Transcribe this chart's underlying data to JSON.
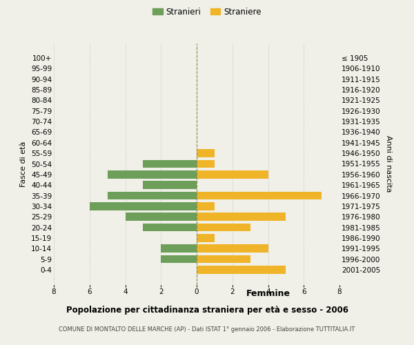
{
  "age_groups": [
    "100+",
    "95-99",
    "90-94",
    "85-89",
    "80-84",
    "75-79",
    "70-74",
    "65-69",
    "60-64",
    "55-59",
    "50-54",
    "45-49",
    "40-44",
    "35-39",
    "30-34",
    "25-29",
    "20-24",
    "15-19",
    "10-14",
    "5-9",
    "0-4"
  ],
  "birth_years": [
    "≤ 1905",
    "1906-1910",
    "1911-1915",
    "1916-1920",
    "1921-1925",
    "1926-1930",
    "1931-1935",
    "1936-1940",
    "1941-1945",
    "1946-1950",
    "1951-1955",
    "1956-1960",
    "1961-1965",
    "1966-1970",
    "1971-1975",
    "1976-1980",
    "1981-1985",
    "1986-1990",
    "1991-1995",
    "1996-2000",
    "2001-2005"
  ],
  "males": [
    0,
    0,
    0,
    0,
    0,
    0,
    0,
    0,
    0,
    0,
    3,
    5,
    3,
    5,
    6,
    4,
    3,
    0,
    2,
    2,
    0
  ],
  "females": [
    0,
    0,
    0,
    0,
    0,
    0,
    0,
    0,
    0,
    1,
    1,
    4,
    0,
    7,
    1,
    5,
    3,
    1,
    4,
    3,
    5
  ],
  "male_color": "#6d9e5a",
  "female_color": "#f0b429",
  "background_color": "#f0f0e8",
  "grid_color": "#cccccc",
  "title": "Popolazione per cittadinanza straniera per età e sesso - 2006",
  "subtitle": "COMUNE DI MONTALTO DELLE MARCHE (AP) - Dati ISTAT 1° gennaio 2006 - Elaborazione TUTTITALIA.IT",
  "xlabel_right": "Femmine",
  "ylabel_left": "Fasce di età",
  "ylabel_right": "Anni di nascita",
  "legend_male": "Stranieri",
  "legend_female": "Straniere",
  "xlim": 8
}
